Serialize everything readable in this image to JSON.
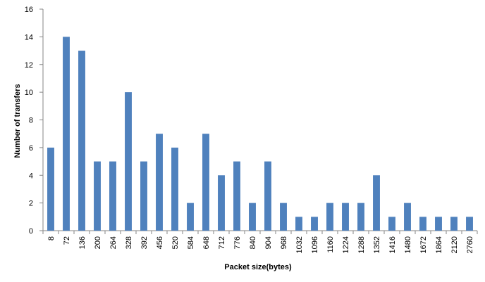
{
  "chart_data": {
    "type": "bar",
    "title": "",
    "xlabel": "Packet size(bytes)",
    "ylabel": "Number of transfers",
    "ylim": [
      0,
      16
    ],
    "ytick_step": 2,
    "yticks": [
      "0",
      "2",
      "4",
      "6",
      "8",
      "10",
      "12",
      "14",
      "16"
    ],
    "grid": false,
    "legend": "none",
    "bar_color": "#4F81BD",
    "categories": [
      "8",
      "72",
      "136",
      "200",
      "264",
      "328",
      "392",
      "456",
      "520",
      "584",
      "648",
      "712",
      "776",
      "840",
      "904",
      "968",
      "1032",
      "1096",
      "1160",
      "1224",
      "1288",
      "1352",
      "1416",
      "1480",
      "1672",
      "1864",
      "2120",
      "2760"
    ],
    "values": [
      6,
      14,
      13,
      5,
      5,
      10,
      5,
      7,
      6,
      2,
      7,
      4,
      5,
      2,
      5,
      2,
      1,
      1,
      2,
      2,
      2,
      4,
      1,
      2,
      1,
      1,
      1,
      1
    ]
  }
}
